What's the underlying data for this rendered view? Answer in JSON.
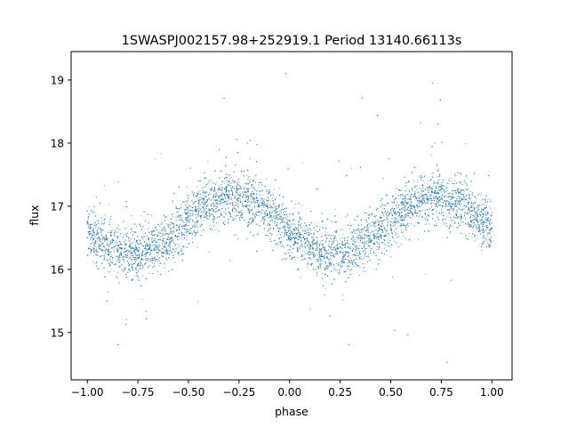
{
  "chart_data": {
    "type": "scatter",
    "title": "1SWASPJ002157.98+252919.1 Period 13140.66113s",
    "xlabel": "phase",
    "ylabel": "flux",
    "xlim": [
      -1.08,
      1.1
    ],
    "ylim": [
      14.25,
      19.45
    ],
    "xticks": [
      -1.0,
      -0.75,
      -0.5,
      -0.25,
      0.0,
      0.25,
      0.5,
      0.75,
      1.0
    ],
    "xtick_labels": [
      "−1.00",
      "−0.75",
      "−0.50",
      "−0.25",
      "0.00",
      "0.25",
      "0.50",
      "0.75",
      "1.00"
    ],
    "yticks": [
      15,
      16,
      17,
      18,
      19
    ],
    "ytick_labels": [
      "15",
      "16",
      "17",
      "18",
      "19"
    ],
    "grid": false,
    "legend": "none",
    "point_color": "#1f77b4",
    "model": {
      "phase_range": [
        -1.0,
        1.0
      ],
      "mean_flux": 16.7,
      "amplitude": 0.45,
      "minima_phase": [
        -0.78,
        0.22
      ],
      "maxima_phase": [
        -0.28,
        0.72
      ],
      "scatter": 0.2
    },
    "series": [
      {
        "x": [
          -1.0,
          -0.95,
          -0.9,
          -0.85,
          -0.8,
          -0.75,
          -0.7,
          -0.65,
          -0.6,
          -0.55,
          -0.5,
          -0.45,
          -0.4,
          -0.35,
          -0.3,
          -0.25,
          -0.2,
          -0.15,
          -0.1,
          -0.05,
          0.0,
          0.05,
          0.1,
          0.15,
          0.2,
          0.25,
          0.3,
          0.35,
          0.4,
          0.45,
          0.5,
          0.55,
          0.6,
          0.65,
          0.7,
          0.75,
          0.8,
          0.85,
          0.9,
          0.95,
          1.0
        ],
        "y": [
          16.75,
          16.55,
          16.4,
          16.28,
          16.25,
          16.28,
          16.38,
          16.55,
          16.7,
          16.85,
          16.97,
          17.07,
          17.12,
          17.15,
          17.15,
          17.13,
          17.08,
          17.0,
          16.92,
          16.8,
          16.7,
          16.52,
          16.38,
          16.28,
          16.24,
          16.27,
          16.36,
          16.52,
          16.68,
          16.83,
          16.95,
          17.05,
          17.1,
          17.15,
          17.17,
          17.15,
          17.1,
          17.05,
          17.0,
          16.95,
          16.9
        ]
      }
    ]
  }
}
